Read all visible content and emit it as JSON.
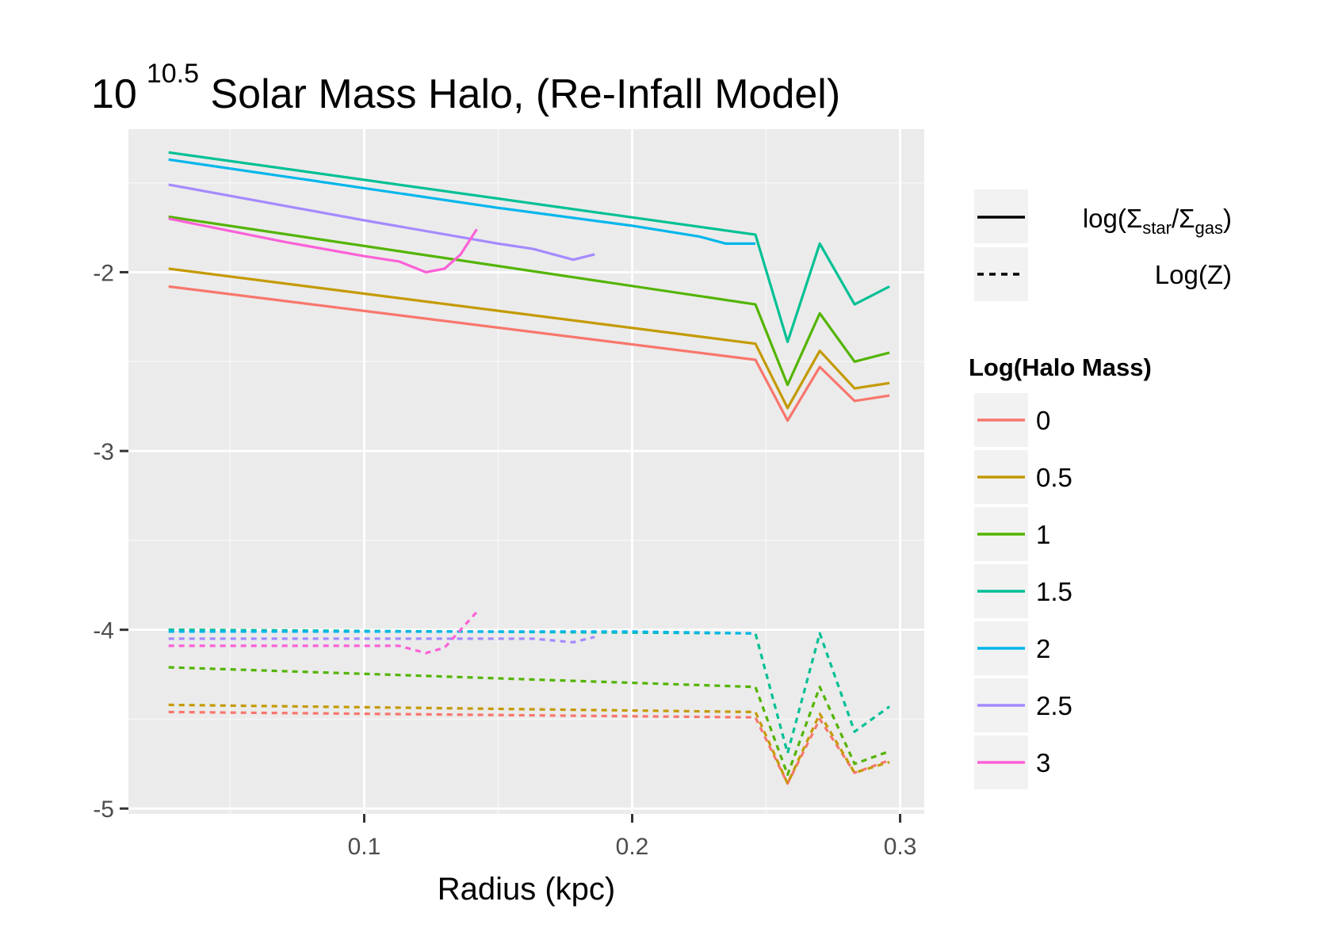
{
  "chart_data": {
    "type": "line",
    "title": {
      "base": "10",
      "exponent": "10.5",
      "rest": " Solar Mass Halo, (Re-Infall Model)"
    },
    "xlabel": "Radius (kpc)",
    "ylabel": "",
    "xlim": [
      0.012,
      0.309
    ],
    "ylim": [
      -5.03,
      -1.2
    ],
    "x_ticks": [
      0.1,
      0.2,
      0.3
    ],
    "x_tick_labels": [
      "0.1",
      "0.2",
      "0.3"
    ],
    "y_ticks": [
      -2,
      -3,
      -4,
      -5
    ],
    "y_tick_labels": [
      "-2",
      "-3",
      "-4",
      "-5"
    ],
    "grid": true,
    "legend_placement": "right",
    "linetype_legend": {
      "entries": [
        {
          "label_main": "log(Σ",
          "sub1": "star",
          "mid": "/Σ",
          "sub2": "gas",
          "end": ")",
          "linetype": "solid"
        },
        {
          "label": "Log(Z)",
          "linetype": "dashed"
        }
      ]
    },
    "color_legend": {
      "title": "Log(Halo Mass)",
      "entries": [
        "0",
        "0.5",
        "1",
        "1.5",
        "2",
        "2.5",
        "3"
      ]
    },
    "series": [
      {
        "name": "0",
        "color": "#F8766D",
        "solid": {
          "x": [
            0.027,
            0.246,
            0.258,
            0.27,
            0.283,
            0.296
          ],
          "y": [
            -2.08,
            -2.49,
            -2.83,
            -2.53,
            -2.72,
            -2.69
          ]
        },
        "dashed": {
          "x": [
            0.027,
            0.246,
            0.258,
            0.27,
            0.283,
            0.296
          ],
          "y": [
            -4.46,
            -4.49,
            -4.86,
            -4.5,
            -4.8,
            -4.73
          ]
        }
      },
      {
        "name": "0.5",
        "color": "#C49A00",
        "solid": {
          "x": [
            0.027,
            0.246,
            0.258,
            0.27,
            0.283,
            0.296
          ],
          "y": [
            -1.98,
            -2.4,
            -2.76,
            -2.44,
            -2.65,
            -2.62
          ]
        },
        "dashed": {
          "x": [
            0.027,
            0.246,
            0.258,
            0.27,
            0.283,
            0.296
          ],
          "y": [
            -4.42,
            -4.46,
            -4.86,
            -4.47,
            -4.8,
            -4.74
          ]
        }
      },
      {
        "name": "1",
        "color": "#53B400",
        "solid": {
          "x": [
            0.027,
            0.246,
            0.258,
            0.27,
            0.283,
            0.296
          ],
          "y": [
            -1.69,
            -2.18,
            -2.63,
            -2.23,
            -2.5,
            -2.45
          ]
        },
        "dashed": {
          "x": [
            0.027,
            0.246,
            0.258,
            0.27,
            0.283,
            0.296
          ],
          "y": [
            -4.21,
            -4.32,
            -4.81,
            -4.32,
            -4.75,
            -4.68
          ]
        }
      },
      {
        "name": "1.5",
        "color": "#00C094",
        "solid": {
          "x": [
            0.027,
            0.246,
            0.258,
            0.27,
            0.283,
            0.296
          ],
          "y": [
            -1.33,
            -1.79,
            -2.39,
            -1.84,
            -2.18,
            -2.08
          ]
        },
        "dashed": {
          "x": [
            0.027,
            0.246,
            0.258,
            0.27,
            0.283,
            0.296
          ],
          "y": [
            -4.0,
            -4.02,
            -4.69,
            -4.02,
            -4.57,
            -4.43
          ]
        }
      },
      {
        "name": "2",
        "color": "#00B6EB",
        "solid": {
          "x": [
            0.027,
            0.1,
            0.15,
            0.2,
            0.225,
            0.235,
            0.246
          ],
          "y": [
            -1.37,
            -1.53,
            -1.64,
            -1.74,
            -1.8,
            -1.84,
            -1.84
          ]
        },
        "dashed": {
          "x": [
            0.027,
            0.1,
            0.15,
            0.2,
            0.246
          ],
          "y": [
            -4.01,
            -4.01,
            -4.01,
            -4.01,
            -4.02
          ]
        }
      },
      {
        "name": "2.5",
        "color": "#A58AFF",
        "solid": {
          "x": [
            0.027,
            0.1,
            0.15,
            0.163,
            0.178,
            0.186
          ],
          "y": [
            -1.51,
            -1.71,
            -1.84,
            -1.87,
            -1.93,
            -1.9
          ]
        },
        "dashed": {
          "x": [
            0.027,
            0.1,
            0.15,
            0.163,
            0.178,
            0.186
          ],
          "y": [
            -4.05,
            -4.05,
            -4.05,
            -4.05,
            -4.07,
            -4.04
          ]
        }
      },
      {
        "name": "3",
        "color": "#FB61D7",
        "solid": {
          "x": [
            0.027,
            0.07,
            0.1,
            0.113,
            0.123,
            0.13,
            0.136,
            0.142
          ],
          "y": [
            -1.7,
            -1.83,
            -1.91,
            -1.94,
            -2.0,
            -1.98,
            -1.9,
            -1.76
          ]
        },
        "dashed": {
          "x": [
            0.027,
            0.1,
            0.113,
            0.123,
            0.13,
            0.136,
            0.142
          ],
          "y": [
            -4.09,
            -4.09,
            -4.09,
            -4.13,
            -4.1,
            -4.0,
            -3.9
          ]
        }
      }
    ]
  }
}
